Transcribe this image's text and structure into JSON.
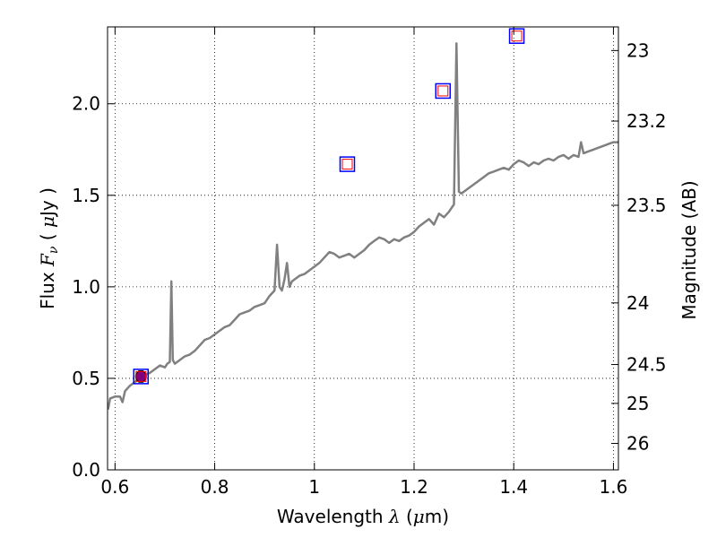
{
  "chart_data": {
    "type": "line",
    "xlabel": {
      "prefix": "Wavelength  ",
      "sym": "λ",
      "open": " (",
      "unit_sym": "μ",
      "unit": "m)"
    },
    "ylabel": {
      "prefix": "Flux  ",
      "sym": "F",
      "sub": "ν",
      "mid": "  ( ",
      "unit_sym": "μ",
      "unit": "Jy )"
    },
    "y2label": "Magnitude (AB)",
    "xlim": [
      0.585,
      1.61
    ],
    "ylim": [
      0.0,
      2.42
    ],
    "grid": true,
    "xticks": [
      {
        "value": 0.6,
        "label": "0.6"
      },
      {
        "value": 0.8,
        "label": "0.8"
      },
      {
        "value": 1.0,
        "label": "1"
      },
      {
        "value": 1.2,
        "label": "1.2"
      },
      {
        "value": 1.4,
        "label": "1.4"
      },
      {
        "value": 1.6,
        "label": "1.6"
      }
    ],
    "yticks": [
      {
        "value": 0.0,
        "label": "0.0"
      },
      {
        "value": 0.5,
        "label": "0.5"
      },
      {
        "value": 1.0,
        "label": "1.0"
      },
      {
        "value": 1.5,
        "label": "1.5"
      },
      {
        "value": 2.0,
        "label": "2.0"
      }
    ],
    "y2ticks": [
      {
        "mag": 23,
        "label": "23"
      },
      {
        "mag": 23.2,
        "label": "23.2"
      },
      {
        "mag": 23.5,
        "label": "23.5"
      },
      {
        "mag": 24,
        "label": "24"
      },
      {
        "mag": 24.5,
        "label": "24.5"
      },
      {
        "mag": 25,
        "label": "25"
      },
      {
        "mag": 26,
        "label": "26"
      }
    ],
    "spectrum": {
      "color": "#808080",
      "x": [
        0.586,
        0.59,
        0.6,
        0.61,
        0.615,
        0.62,
        0.63,
        0.64,
        0.65,
        0.66,
        0.67,
        0.68,
        0.69,
        0.7,
        0.705,
        0.71,
        0.713,
        0.716,
        0.72,
        0.73,
        0.74,
        0.75,
        0.76,
        0.77,
        0.78,
        0.79,
        0.8,
        0.81,
        0.82,
        0.83,
        0.84,
        0.85,
        0.86,
        0.87,
        0.88,
        0.89,
        0.9,
        0.91,
        0.92,
        0.925,
        0.93,
        0.935,
        0.94,
        0.945,
        0.95,
        0.955,
        0.96,
        0.97,
        0.98,
        0.99,
        1.0,
        1.01,
        1.02,
        1.03,
        1.04,
        1.05,
        1.06,
        1.07,
        1.08,
        1.09,
        1.1,
        1.11,
        1.12,
        1.13,
        1.14,
        1.15,
        1.16,
        1.17,
        1.18,
        1.19,
        1.2,
        1.21,
        1.22,
        1.23,
        1.24,
        1.25,
        1.26,
        1.27,
        1.275,
        1.28,
        1.285,
        1.29,
        1.295,
        1.3,
        1.31,
        1.32,
        1.33,
        1.34,
        1.35,
        1.36,
        1.37,
        1.38,
        1.39,
        1.4,
        1.41,
        1.42,
        1.43,
        1.44,
        1.45,
        1.46,
        1.47,
        1.48,
        1.49,
        1.5,
        1.51,
        1.52,
        1.53,
        1.535,
        1.54,
        1.55,
        1.56,
        1.57,
        1.58,
        1.59,
        1.6,
        1.61
      ],
      "y": [
        0.33,
        0.39,
        0.4,
        0.4,
        0.37,
        0.43,
        0.46,
        0.48,
        0.5,
        0.52,
        0.53,
        0.55,
        0.57,
        0.56,
        0.58,
        0.59,
        1.03,
        0.6,
        0.58,
        0.6,
        0.62,
        0.63,
        0.65,
        0.68,
        0.71,
        0.72,
        0.74,
        0.76,
        0.78,
        0.79,
        0.82,
        0.85,
        0.86,
        0.87,
        0.89,
        0.9,
        0.91,
        0.95,
        0.98,
        1.23,
        1.0,
        0.98,
        1.04,
        1.13,
        1.0,
        1.03,
        1.04,
        1.06,
        1.07,
        1.09,
        1.11,
        1.13,
        1.16,
        1.19,
        1.18,
        1.16,
        1.17,
        1.18,
        1.16,
        1.18,
        1.2,
        1.23,
        1.25,
        1.27,
        1.26,
        1.24,
        1.26,
        1.25,
        1.27,
        1.28,
        1.3,
        1.33,
        1.35,
        1.37,
        1.34,
        1.4,
        1.38,
        1.41,
        1.43,
        1.45,
        2.33,
        1.52,
        1.51,
        1.52,
        1.54,
        1.56,
        1.58,
        1.6,
        1.62,
        1.63,
        1.64,
        1.65,
        1.64,
        1.67,
        1.69,
        1.68,
        1.66,
        1.68,
        1.67,
        1.69,
        1.7,
        1.69,
        1.71,
        1.72,
        1.7,
        1.72,
        1.71,
        1.79,
        1.73,
        1.74,
        1.75,
        1.76,
        1.77,
        1.78,
        1.79,
        1.79
      ]
    },
    "photometry": {
      "color": "#0000ff",
      "x": [
        0.652,
        1.066,
        1.258,
        1.406
      ],
      "y": [
        0.51,
        1.67,
        2.07,
        2.37
      ]
    },
    "model_photometry": {
      "color": "#ff0000",
      "x": [
        0.652,
        1.066,
        1.258,
        1.406
      ],
      "y": [
        0.51,
        1.67,
        2.07,
        2.37
      ]
    },
    "measured_point": {
      "color": "#800080",
      "x": 0.652,
      "y": 0.51,
      "yerr": 0.03
    }
  }
}
